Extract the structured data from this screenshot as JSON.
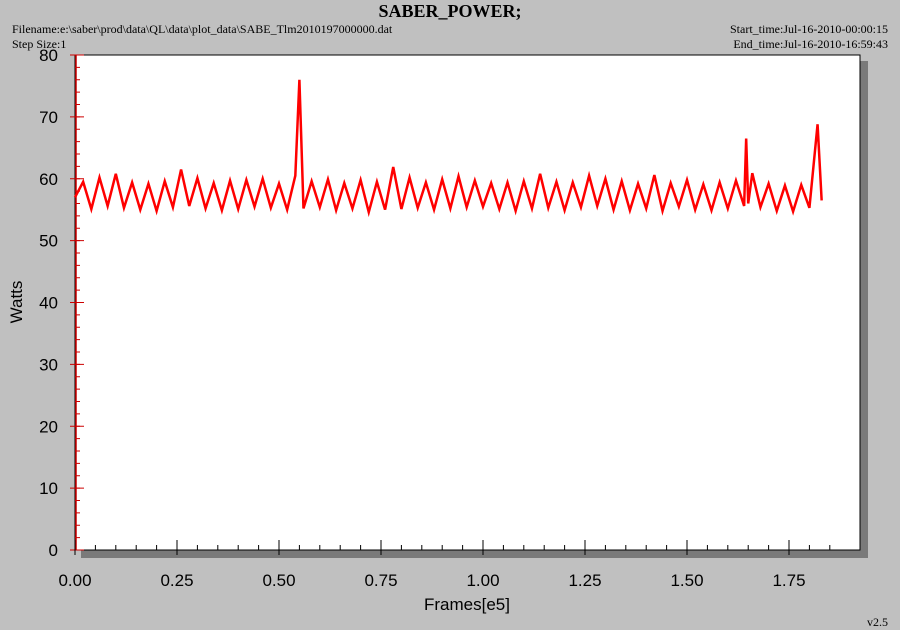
{
  "chart_data": {
    "type": "line",
    "title": "SABER_POWER;",
    "filename": "Filename:e:\\saber\\prod\\data\\QL\\data\\plot_data\\SABE_Tlm2010197000000.dat",
    "step_size": "Step Size:1",
    "start_time": "Start_time:Jul-16-2010-00:00:15",
    "end_time": "End_time:Jul-16-2010-16:59:43",
    "version": "v2.5",
    "x_label": "Frames[e5]",
    "y_label": "Watts",
    "color": "#ff0000",
    "x": [
      0,
      0.02,
      0.04,
      0.06,
      0.08,
      0.1,
      0.12,
      0.14,
      0.16,
      0.18,
      0.2,
      0.22,
      0.24,
      0.26,
      0.28,
      0.3,
      0.32,
      0.34,
      0.36,
      0.38,
      0.4,
      0.42,
      0.44,
      0.46,
      0.48,
      0.5,
      0.52,
      0.54,
      0.55,
      0.56,
      0.58,
      0.6,
      0.62,
      0.64,
      0.66,
      0.68,
      0.7,
      0.72,
      0.74,
      0.76,
      0.78,
      0.8,
      0.82,
      0.84,
      0.86,
      0.88,
      0.9,
      0.92,
      0.94,
      0.96,
      0.98,
      1,
      1.02,
      1.04,
      1.06,
      1.08,
      1.1,
      1.12,
      1.14,
      1.16,
      1.18,
      1.2,
      1.22,
      1.24,
      1.26,
      1.28,
      1.3,
      1.32,
      1.34,
      1.36,
      1.38,
      1.4,
      1.42,
      1.44,
      1.46,
      1.48,
      1.5,
      1.52,
      1.54,
      1.56,
      1.58,
      1.6,
      1.62,
      1.64,
      1.645,
      1.65,
      1.66,
      1.68,
      1.7,
      1.72,
      1.74,
      1.76,
      1.78,
      1.8,
      1.82,
      1.83
    ],
    "values": [
      57.0,
      59.5,
      55.1,
      60.2,
      55.6,
      60.8,
      55.3,
      59.4,
      55.0,
      59.2,
      54.8,
      59.6,
      55.4,
      61.5,
      55.6,
      60.1,
      55.2,
      59.3,
      54.9,
      59.7,
      55.1,
      59.8,
      55.5,
      60.0,
      55.3,
      59.2,
      55.0,
      60.5,
      76.0,
      55.2,
      59.6,
      55.4,
      59.9,
      54.9,
      59.3,
      55.2,
      59.8,
      54.6,
      59.5,
      55.0,
      61.9,
      55.1,
      60.2,
      55.3,
      59.4,
      55.0,
      59.9,
      55.2,
      60.4,
      55.4,
      59.7,
      55.5,
      59.3,
      55.1,
      59.4,
      54.8,
      59.6,
      55.2,
      60.8,
      55.3,
      59.5,
      54.9,
      59.4,
      55.4,
      60.5,
      55.6,
      60.0,
      55.0,
      59.6,
      54.9,
      59.2,
      55.2,
      60.6,
      54.8,
      59.3,
      55.5,
      59.8,
      55.0,
      59.1,
      54.9,
      59.4,
      55.2,
      59.7,
      55.6,
      66.5,
      56.0,
      60.9,
      55.4,
      59.2,
      54.8,
      58.9,
      54.7,
      59.0,
      55.3,
      68.8,
      56.5
    ],
    "xlim": [
      0,
      1.924
    ],
    "ylim": [
      0,
      80
    ],
    "xticks": [
      {
        "value": 0,
        "label": "0.00"
      },
      0.25,
      {
        "value": 0.5,
        "label": "0.50"
      },
      0.75,
      {
        "value": 1,
        "label": "1.00"
      },
      1.25,
      {
        "value": 1.5,
        "label": "1.50"
      },
      1.75
    ],
    "yticks": [
      0,
      10,
      20,
      30,
      40,
      50,
      60,
      70,
      80
    ]
  }
}
